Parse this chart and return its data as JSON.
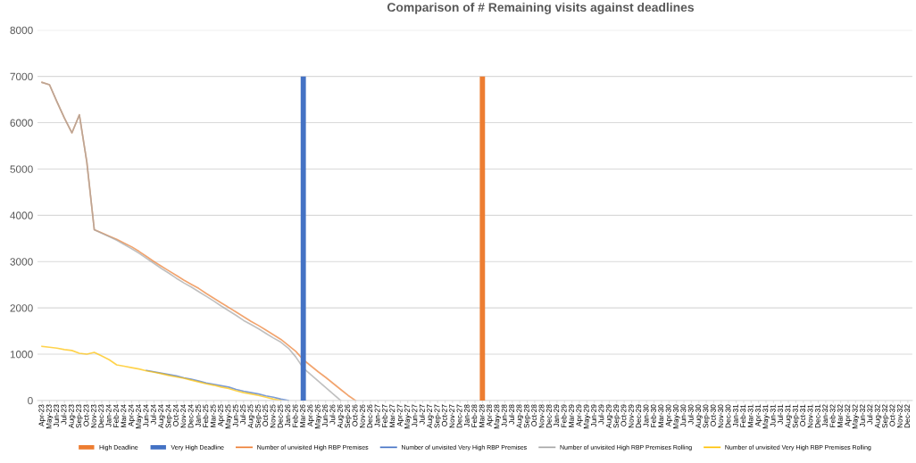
{
  "chart_data": {
    "type": "line",
    "title": "Comparison of # Remaining visits against deadlines",
    "categories": [
      "Apr-23",
      "May-23",
      "Jun-23",
      "Jul-23",
      "Aug-23",
      "Sep-23",
      "Oct-23",
      "Nov-23",
      "Dec-23",
      "Jan-24",
      "Feb-24",
      "Mar-24",
      "Apr-24",
      "May-24",
      "Jun-24",
      "Jul-24",
      "Aug-24",
      "Sep-24",
      "Oct-24",
      "Nov-24",
      "Dec-24",
      "Jan-25",
      "Feb-25",
      "Mar-25",
      "Apr-25",
      "May-25",
      "Jun-25",
      "Jul-25",
      "Aug-25",
      "Sep-25",
      "Oct-25",
      "Nov-25",
      "Dec-25",
      "Jan-26",
      "Feb-26",
      "Mar-26",
      "Apr-26",
      "May-26",
      "Jun-26",
      "Jul-26",
      "Aug-26",
      "Sep-26",
      "Oct-26",
      "Nov-26",
      "Dec-26",
      "Jan-27",
      "Feb-27",
      "Mar-27",
      "Apr-27",
      "May-27",
      "Jun-27",
      "Jul-27",
      "Aug-27",
      "Sep-27",
      "Oct-27",
      "Nov-27",
      "Dec-27",
      "Jan-28",
      "Feb-28",
      "Mar-28",
      "Apr-28",
      "May-28",
      "Jun-28",
      "Jul-28",
      "Aug-28",
      "Sep-28",
      "Oct-28",
      "Nov-28",
      "Dec-28",
      "Jan-29",
      "Feb-29",
      "Mar-29",
      "Apr-29",
      "May-29",
      "Jun-29",
      "Jul-29",
      "Aug-29",
      "Sep-29",
      "Oct-29",
      "Nov-29",
      "Dec-29",
      "Jan-30",
      "Feb-30",
      "Mar-30",
      "Apr-30",
      "May-30",
      "Jun-30",
      "Jul-30",
      "Aug-30",
      "Sep-30",
      "Oct-30",
      "Nov-30",
      "Dec-30",
      "Jan-31",
      "Feb-31",
      "Mar-31",
      "Apr-31",
      "May-31",
      "Jun-31",
      "Jul-31",
      "Aug-31",
      "Sep-31",
      "Oct-31",
      "Nov-31",
      "Dec-31",
      "Jan-32",
      "Feb-32",
      "Mar-32",
      "Apr-32",
      "May-32",
      "Jun-32",
      "Jul-32",
      "Aug-32",
      "Sep-32",
      "Oct-32",
      "Nov-32",
      "Dec-32"
    ],
    "series": [
      {
        "name": "High Deadline",
        "type": "bar",
        "color": "#ed7d31",
        "values": [
          null,
          null,
          null,
          null,
          null,
          null,
          null,
          null,
          null,
          null,
          null,
          null,
          null,
          null,
          null,
          null,
          null,
          null,
          null,
          null,
          null,
          null,
          null,
          null,
          null,
          null,
          null,
          null,
          null,
          null,
          null,
          null,
          null,
          null,
          null,
          null,
          null,
          null,
          null,
          null,
          null,
          null,
          null,
          null,
          null,
          null,
          null,
          null,
          null,
          null,
          null,
          null,
          null,
          null,
          null,
          null,
          null,
          null,
          null,
          7000,
          null,
          null,
          null,
          null,
          null,
          null,
          null,
          null,
          null,
          null,
          null,
          null,
          null,
          null,
          null,
          null,
          null,
          null,
          null,
          null,
          null,
          null,
          null,
          null,
          null,
          null,
          null,
          null,
          null,
          null,
          null,
          null,
          null,
          null,
          null,
          null,
          null,
          null,
          null,
          null,
          null,
          null,
          null,
          null,
          null,
          null,
          null,
          null,
          null,
          null,
          null,
          null,
          null,
          null,
          null,
          null,
          null
        ]
      },
      {
        "name": "Very High Deadline",
        "type": "bar",
        "color": "#4472c4",
        "values": [
          null,
          null,
          null,
          null,
          null,
          null,
          null,
          null,
          null,
          null,
          null,
          null,
          null,
          null,
          null,
          null,
          null,
          null,
          null,
          null,
          null,
          null,
          null,
          null,
          null,
          null,
          null,
          null,
          null,
          null,
          null,
          null,
          null,
          null,
          null,
          7000,
          null,
          null,
          null,
          null,
          null,
          null,
          null,
          null,
          null,
          null,
          null,
          null,
          null,
          null,
          null,
          null,
          null,
          null,
          null,
          null,
          null,
          null,
          null,
          null,
          null,
          null,
          null,
          null,
          null,
          null,
          null,
          null,
          null,
          null,
          null,
          null,
          null,
          null,
          null,
          null,
          null,
          null,
          null,
          null,
          null,
          null,
          null,
          null,
          null,
          null,
          null,
          null,
          null,
          null,
          null,
          null,
          null,
          null,
          null,
          null,
          null,
          null,
          null,
          null,
          null,
          null,
          null,
          null,
          null,
          null,
          null,
          null,
          null,
          null,
          null,
          null,
          null,
          null,
          null,
          null,
          null
        ]
      },
      {
        "name": "Number of unvisited High RBP Premises",
        "color": "#ed7d31",
        "values": [
          6870,
          6820,
          6450,
          6100,
          5780,
          6170,
          5150,
          3690,
          3620,
          3550,
          3480,
          3400,
          3320,
          3220,
          3110,
          3000,
          2900,
          2800,
          2700,
          2600,
          2510,
          2420,
          2310,
          2210,
          2110,
          2010,
          1910,
          1810,
          1710,
          1620,
          1520,
          1420,
          1320,
          1190,
          1060,
          880,
          750,
          620,
          500,
          370,
          240,
          110,
          0,
          null,
          null,
          null,
          null,
          null,
          null,
          null,
          null,
          null,
          null,
          null,
          null,
          null,
          null,
          null,
          null,
          null,
          null,
          null,
          null,
          null,
          null,
          null,
          null,
          null,
          null,
          null,
          null,
          null,
          null,
          null,
          null,
          null,
          null,
          null,
          null,
          null,
          null,
          null,
          null,
          null,
          null,
          null,
          null,
          null,
          null,
          null,
          null,
          null,
          null,
          null,
          null,
          null,
          null,
          null,
          null,
          null,
          null,
          null,
          null,
          null,
          null,
          null,
          null,
          null,
          null,
          null,
          null,
          null,
          null,
          null,
          null,
          null,
          null
        ]
      },
      {
        "name": "Number of unvisited Very High RBP Premises",
        "color": "#4472c4",
        "values": [
          null,
          null,
          null,
          null,
          null,
          null,
          null,
          null,
          null,
          null,
          null,
          null,
          null,
          null,
          650,
          620,
          590,
          560,
          530,
          490,
          460,
          420,
          380,
          350,
          320,
          290,
          240,
          200,
          170,
          140,
          100,
          70,
          30,
          0,
          null,
          null,
          null,
          null,
          null,
          null,
          null,
          null,
          null,
          null,
          null,
          null,
          null,
          null,
          null,
          null,
          null,
          null,
          null,
          null,
          null,
          null,
          null,
          null,
          null,
          null,
          null,
          null,
          null,
          null,
          null,
          null,
          null,
          null,
          null,
          null,
          null,
          null,
          null,
          null,
          null,
          null,
          null,
          null,
          null,
          null,
          null,
          null,
          null,
          null,
          null,
          null,
          null,
          null,
          null,
          null,
          null,
          null,
          null,
          null,
          null,
          null,
          null,
          null,
          null,
          null,
          null,
          null,
          null,
          null,
          null,
          null,
          null,
          null,
          null,
          null,
          null,
          null,
          null,
          null,
          null,
          null,
          null
        ]
      },
      {
        "name": "Number of unvisited High RBP Premises Rolling",
        "color": "#a5a5a5",
        "values": [
          6870,
          6820,
          6450,
          6100,
          5780,
          6170,
          5150,
          3690,
          3610,
          3540,
          3460,
          3370,
          3280,
          3180,
          3070,
          2960,
          2850,
          2750,
          2640,
          2540,
          2450,
          2350,
          2250,
          2150,
          2040,
          1940,
          1840,
          1730,
          1640,
          1550,
          1450,
          1350,
          1260,
          1130,
          940,
          700,
          560,
          420,
          280,
          140,
          0,
          null,
          null,
          null,
          null,
          null,
          null,
          null,
          null,
          null,
          null,
          null,
          null,
          null,
          null,
          null,
          null,
          null,
          null,
          null,
          null,
          null,
          null,
          null,
          null,
          null,
          null,
          null,
          null,
          null,
          null,
          null,
          null,
          null,
          null,
          null,
          null,
          null,
          null,
          null,
          null,
          null,
          null,
          null,
          null,
          null,
          null,
          null,
          null,
          null,
          null,
          null,
          null,
          null,
          null,
          null,
          null,
          null,
          null,
          null,
          null,
          null,
          null,
          null,
          null,
          null,
          null,
          null,
          null,
          null,
          null,
          null,
          null,
          null,
          null,
          null,
          null
        ]
      },
      {
        "name": "Number of unvisited Very High RBP Premises Rolling",
        "color": "#ffc000",
        "values": [
          1170,
          1150,
          1130,
          1100,
          1080,
          1020,
          1000,
          1040,
          960,
          880,
          770,
          740,
          710,
          680,
          640,
          610,
          580,
          540,
          510,
          480,
          440,
          400,
          360,
          330,
          290,
          260,
          210,
          170,
          140,
          110,
          70,
          30,
          0,
          null,
          null,
          null,
          null,
          null,
          null,
          null,
          null,
          null,
          null,
          null,
          null,
          null,
          null,
          null,
          null,
          null,
          null,
          null,
          null,
          null,
          null,
          null,
          null,
          null,
          null,
          null,
          null,
          null,
          null,
          null,
          null,
          null,
          null,
          null,
          null,
          null,
          null,
          null,
          null,
          null,
          null,
          null,
          null,
          null,
          null,
          null,
          null,
          null,
          null,
          null,
          null,
          null,
          null,
          null,
          null,
          null,
          null,
          null,
          null,
          null,
          null,
          null,
          null,
          null,
          null,
          null,
          null,
          null,
          null,
          null,
          null,
          null,
          null,
          null,
          null,
          null,
          null,
          null,
          null,
          null,
          null,
          null,
          null
        ]
      }
    ],
    "ylim": [
      0,
      8000
    ],
    "yticks": [
      0,
      1000,
      2000,
      3000,
      4000,
      5000,
      6000,
      7000,
      8000
    ],
    "grid": "y",
    "legend": "bottom"
  }
}
